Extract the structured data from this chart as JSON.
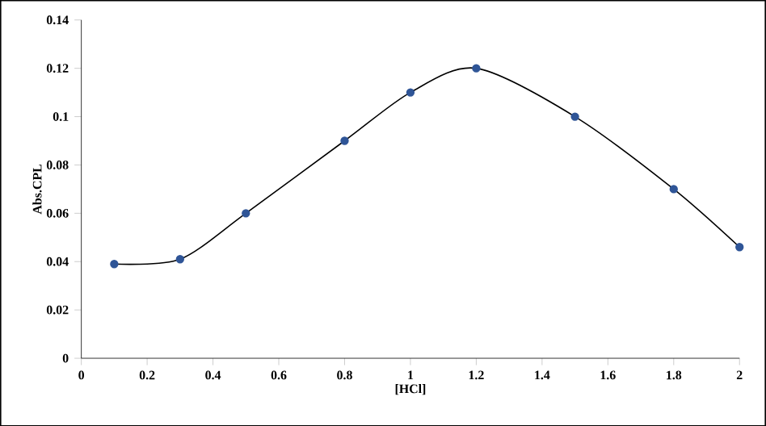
{
  "chart_data": {
    "type": "line",
    "xlabel": "[HCl]",
    "ylabel": "Abs.CPL",
    "x": [
      0.1,
      0.3,
      0.5,
      0.8,
      1,
      1.2,
      1.5,
      1.8,
      2
    ],
    "series": [
      {
        "color": "#2f5597",
        "values": [
          0.039,
          0.041,
          0.06,
          0.09,
          0.11,
          0.12,
          0.1,
          0.07,
          0.046
        ]
      }
    ],
    "xlim": [
      0,
      2
    ],
    "xticks": [
      0,
      0.2,
      0.4,
      0.6,
      0.8,
      1,
      1.2,
      1.4,
      1.6,
      1.8,
      2
    ],
    "ylim": [
      0,
      0.14
    ],
    "yticks": [
      0,
      0.02,
      0.04,
      0.06,
      0.08,
      0.1,
      0.12,
      0.14
    ],
    "marker": "circle",
    "line_style": "solid"
  }
}
